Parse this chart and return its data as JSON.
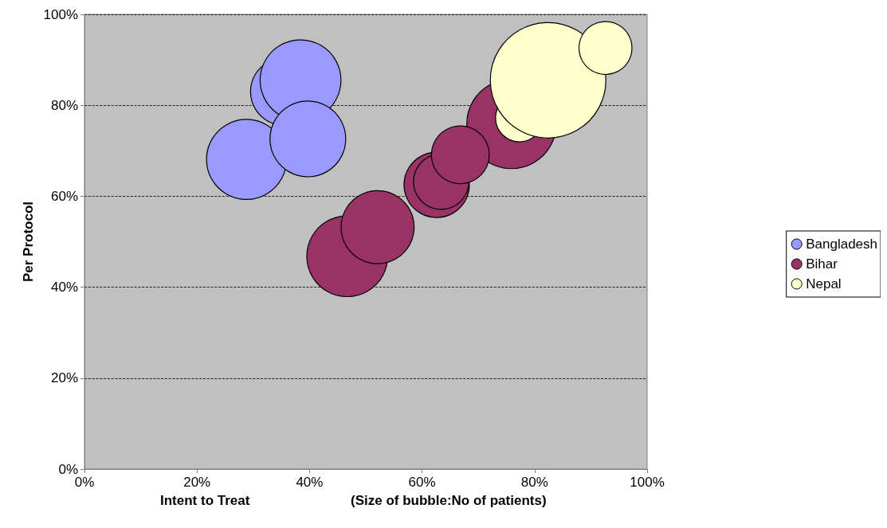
{
  "chart_data": {
    "type": "bubble",
    "xlabel": "Intent to Treat",
    "ylabel": "Per Protocol",
    "annotations": [
      "(Size of bubble:No of patients)"
    ],
    "xlim": [
      0,
      100
    ],
    "ylim": [
      0,
      100
    ],
    "xticks": [
      {
        "value": 0,
        "label": "0%"
      },
      {
        "value": 20,
        "label": "20%"
      },
      {
        "value": 40,
        "label": "40%"
      },
      {
        "value": 60,
        "label": "60%"
      },
      {
        "value": 80,
        "label": "80%"
      },
      {
        "value": 100,
        "label": "100%"
      }
    ],
    "yticks": [
      {
        "value": 0,
        "label": "0%"
      },
      {
        "value": 20,
        "label": "20%"
      },
      {
        "value": 40,
        "label": "40%"
      },
      {
        "value": 60,
        "label": "60%"
      },
      {
        "value": 80,
        "label": "80%"
      },
      {
        "value": 100,
        "label": "100%"
      }
    ],
    "grid": "y",
    "legend": "right",
    "series": [
      {
        "name": "Bangladesh",
        "color": "#9999ff",
        "x": [
          35.5,
          28.8,
          38.4,
          39.7
        ],
        "values": [
          83,
          68.1,
          85.5,
          72.6
        ],
        "sizes": [
          0.34,
          0.48,
          0.49,
          0.43
        ]
      },
      {
        "name": "Bihar",
        "color": "#993366",
        "x": [
          46.7,
          52.1,
          62.6,
          63.4,
          75.9,
          66.8
        ],
        "values": [
          46.8,
          53.2,
          62.5,
          63.2,
          75.9,
          69.1
        ],
        "sizes": [
          0.49,
          0.4,
          0.32,
          0.23,
          0.6,
          0.25
        ]
      },
      {
        "name": "Nepal",
        "color": "#ffffcc",
        "x": [
          77.3,
          82.4,
          92.6
        ],
        "values": [
          77.2,
          85.5,
          92.6
        ],
        "sizes": [
          0.17,
          1,
          0.21
        ]
      }
    ]
  }
}
